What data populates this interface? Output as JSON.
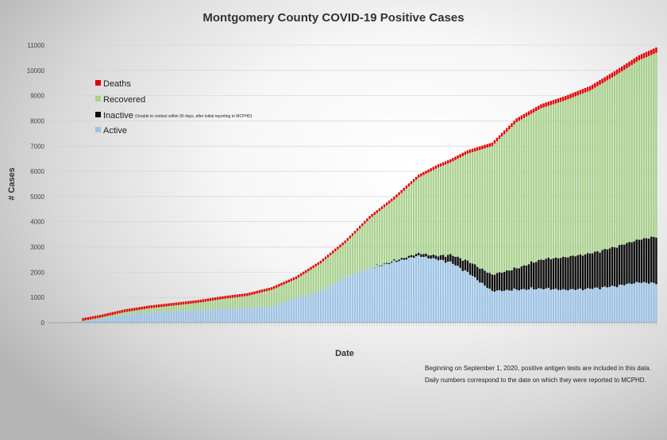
{
  "chart_data": {
    "type": "bar",
    "stacked": true,
    "title": "Montgomery County COVID-19 Positive Cases",
    "xlabel": "Date",
    "ylabel": "# Cases",
    "ylim": [
      0,
      11000
    ],
    "yticks": [
      0,
      1000,
      2000,
      3000,
      4000,
      5000,
      6000,
      7000,
      8000,
      9000,
      10000,
      11000
    ],
    "grid": true,
    "legend_position": "top-left",
    "bar_count": 248,
    "series": [
      {
        "name": "Deaths",
        "color": "#e00000"
      },
      {
        "name": "Recovered",
        "color": "#a9d18e"
      },
      {
        "name": "Inactive",
        "color": "#0b0b0b",
        "note": "(Unable to contact within 30 days, after initial reporting to MCPHD)"
      },
      {
        "name": "Active",
        "color": "#9dc3e6"
      }
    ],
    "anchor_days": [
      0,
      10,
      20,
      30,
      40,
      50,
      60,
      70,
      80,
      90,
      100,
      110,
      120,
      130,
      140,
      150,
      158,
      163,
      170,
      180,
      190,
      200,
      210,
      220,
      230,
      240,
      247
    ],
    "total_cases": [
      0,
      20,
      200,
      420,
      570,
      680,
      790,
      940,
      1060,
      1300,
      1730,
      2350,
      3150,
      4120,
      4880,
      5750,
      6150,
      6350,
      6700,
      7000,
      7950,
      8500,
      8820,
      9200,
      9780,
      10400,
      10700
    ],
    "active_cases": [
      0,
      15,
      150,
      300,
      400,
      450,
      500,
      540,
      570,
      650,
      1000,
      1250,
      1800,
      2150,
      2400,
      2650,
      2500,
      2400,
      2000,
      1250,
      1300,
      1350,
      1300,
      1350,
      1450,
      1600,
      1550
    ],
    "inactive_cases": [
      0,
      0,
      0,
      0,
      0,
      0,
      0,
      0,
      0,
      0,
      0,
      0,
      0,
      0,
      50,
      100,
      150,
      300,
      450,
      650,
      850,
      1150,
      1300,
      1400,
      1550,
      1700,
      1850
    ],
    "deaths": [
      0,
      2,
      5,
      10,
      14,
      20,
      30,
      40,
      50,
      60,
      70,
      85,
      100,
      110,
      115,
      120,
      125,
      130,
      135,
      140,
      150,
      160,
      170,
      180,
      190,
      200,
      210
    ],
    "notes": [
      "Beginning on September 1, 2020, positive antigen tests are included in this data.",
      "Daily numbers correspond to the date on which they were reported to MCPHD."
    ]
  }
}
